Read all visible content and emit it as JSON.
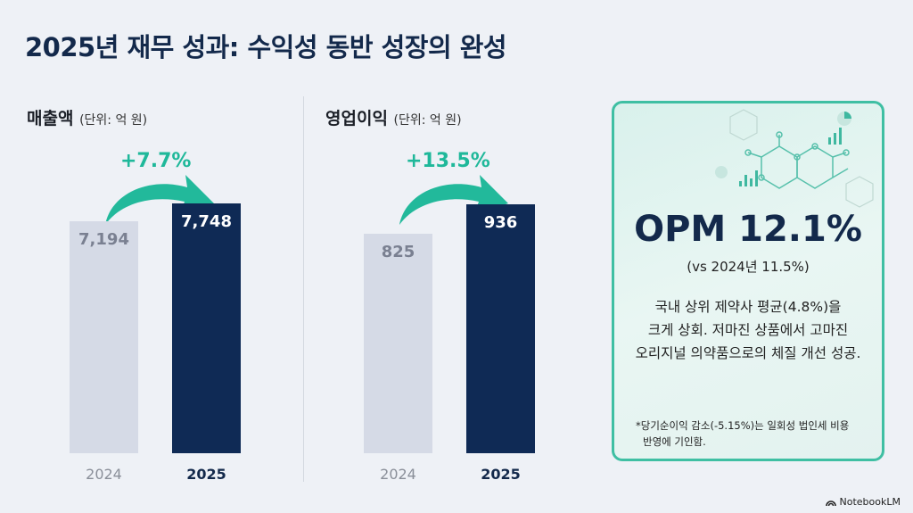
{
  "title": "2025년 재무 성과: 수익성 동반 성장의 완성",
  "chart_data": [
    {
      "type": "bar",
      "title": "매출액",
      "unit": "(단위: 억 원)",
      "categories": [
        "2024",
        "2025"
      ],
      "values": [
        7194,
        7748
      ],
      "value_labels": [
        "7,194",
        "7,748"
      ],
      "growth_label": "+7.7%",
      "ylim": [
        0,
        7900
      ]
    },
    {
      "type": "bar",
      "title": "영업이익",
      "unit": "(단위: 억 원)",
      "categories": [
        "2024",
        "2025"
      ],
      "values": [
        825,
        936
      ],
      "value_labels": [
        "825",
        "936"
      ],
      "growth_label": "+13.5%",
      "ylim": [
        0,
        955
      ]
    }
  ],
  "panel": {
    "headline": "OPM 12.1%",
    "comparison": "(vs 2024년 11.5%)",
    "description": [
      "국내 상위 제약사 평균(4.8%)을",
      "크게 상회. 저마진 상품에서 고마진",
      "오리지널 의약품으로의 체질 개선 성공."
    ],
    "note": [
      "*당기순이익 감소(-5.15%)는 일회성 법인세 비용",
      "반영에 기인함."
    ]
  },
  "colors": {
    "navy": "#0f2a55",
    "light_bar": "#d5dae6",
    "accent": "#1fb89a"
  },
  "watermark": "NotebookLM"
}
